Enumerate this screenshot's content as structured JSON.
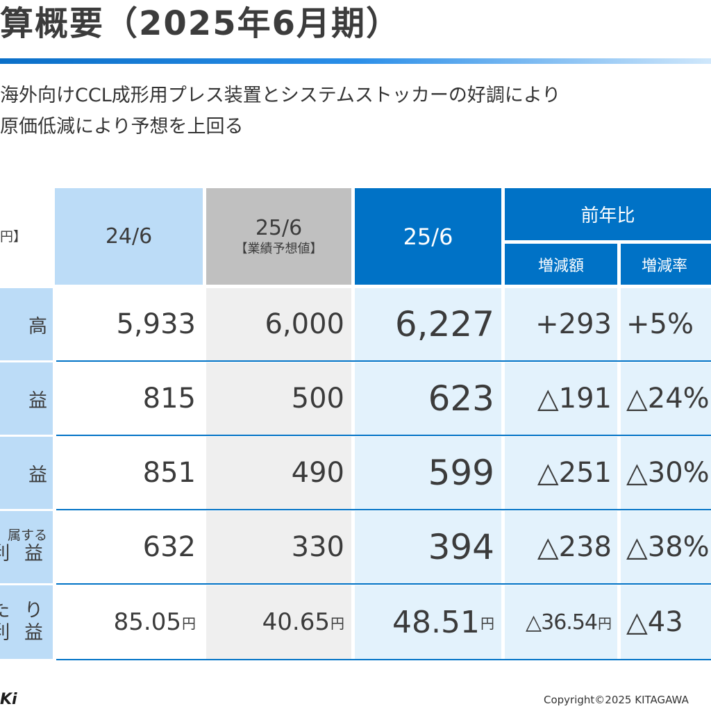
{
  "header": {
    "title": "算概要（2025年6月期）"
  },
  "summary": {
    "line1": "海外向けCCL成形用プレス装置とシステムストッカーの好調により",
    "line2": "原価低減により予想を上回る"
  },
  "table": {
    "unit_label": "円】",
    "columns": {
      "prev": "24/6",
      "forecast": "25/6",
      "forecast_note": "【業績予想値】",
      "current": "25/6",
      "yoy": "前年比",
      "yoy_amount": "増減額",
      "yoy_rate": "増減率"
    },
    "rows": [
      {
        "label": "高",
        "prev": "5,933",
        "forecast": "6,000",
        "current": "6,227",
        "diff": "+293",
        "rate": "+5%"
      },
      {
        "label": "益",
        "prev": "815",
        "forecast": "500",
        "current": "623",
        "diff": "△191",
        "rate": "△24%"
      },
      {
        "label": "益",
        "prev": "851",
        "forecast": "490",
        "current": "599",
        "diff": "△251",
        "rate": "△30%"
      },
      {
        "label_small": "属する",
        "label_big": "利 益",
        "prev": "632",
        "forecast": "330",
        "current": "394",
        "diff": "△238",
        "rate": "△38%"
      },
      {
        "label_top": "た り",
        "label_big": "利 益",
        "prev": "85.05",
        "forecast": "40.65",
        "current": "48.51",
        "diff": "△36.54",
        "rate": "△43",
        "yen": "円"
      }
    ]
  },
  "footer": {
    "logo_text": "Ki",
    "copyright": "Copyright©2025 KITAGAWA"
  }
}
